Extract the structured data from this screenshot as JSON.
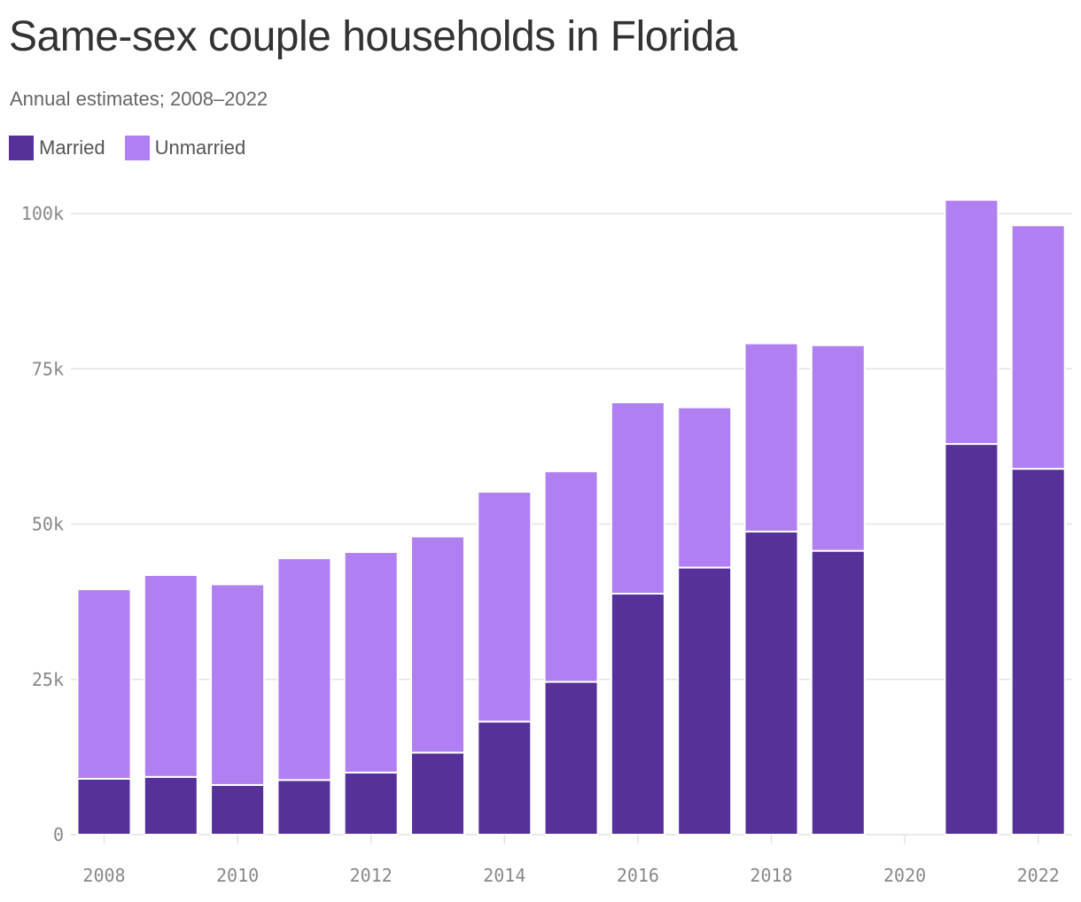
{
  "title": "Same-sex couple households in Florida",
  "subtitle": "Annual estimates; 2008–2022",
  "colors": {
    "married": "#553199",
    "unmarried": "#b07ff2",
    "grid": "#e2e2e2",
    "axis_text": "#888888"
  },
  "chart_data": {
    "type": "bar",
    "stacked": true,
    "title": "Same-sex couple households in Florida",
    "subtitle": "Annual estimates; 2008–2022",
    "legend_position": "top-left",
    "grid": true,
    "categories": [
      2008,
      2009,
      2010,
      2011,
      2012,
      2013,
      2014,
      2015,
      2016,
      2017,
      2018,
      2019,
      2020,
      2021,
      2022
    ],
    "series": [
      {
        "name": "Married",
        "color": "#553199",
        "values": [
          9000,
          9300,
          8000,
          8800,
          10000,
          13200,
          18200,
          24600,
          38800,
          43000,
          48800,
          45700,
          null,
          62900,
          58900
        ]
      },
      {
        "name": "Unmarried",
        "color": "#b07ff2",
        "values": [
          30500,
          32500,
          32300,
          35700,
          35500,
          34800,
          37000,
          33900,
          30800,
          25800,
          30300,
          33100,
          null,
          39300,
          39200
        ]
      }
    ],
    "ylim": [
      0,
      100000
    ],
    "yticks": [
      0,
      25000,
      50000,
      75000,
      100000
    ],
    "ytick_labels": [
      "0",
      "25k",
      "50k",
      "75k",
      "100k"
    ],
    "xticks": [
      2008,
      2010,
      2012,
      2014,
      2016,
      2018,
      2020,
      2022
    ],
    "xtick_labels": [
      "2008",
      "2010",
      "2012",
      "2014",
      "2016",
      "2018",
      "2020",
      "2022"
    ],
    "xlabel": "",
    "ylabel": ""
  }
}
